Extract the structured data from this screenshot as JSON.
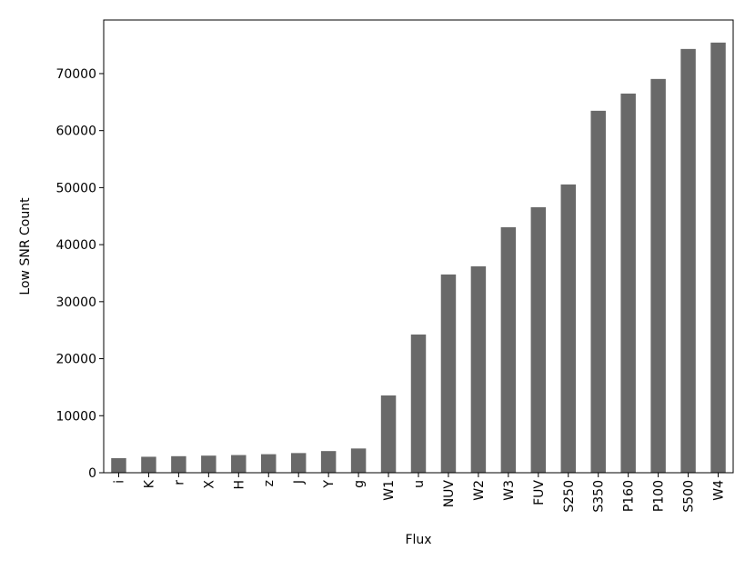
{
  "chart_data": {
    "type": "bar",
    "x_label": "Flux",
    "y_label": "Low SNR Count",
    "categories": [
      "i",
      "K",
      "r",
      "X",
      "H",
      "z",
      "J",
      "Y",
      "g",
      "W1",
      "u",
      "NUV",
      "W2",
      "W3",
      "FUV",
      "S250",
      "S350",
      "P160",
      "P100",
      "S500",
      "W4"
    ],
    "values": [
      2550,
      2800,
      2900,
      3000,
      3100,
      3250,
      3450,
      3800,
      4250,
      13550,
      24240,
      34770,
      36200,
      43060,
      46570,
      50560,
      63480,
      66500,
      69060,
      74320,
      75440
    ],
    "color": "#696969",
    "ylim": [
      0,
      79400
    ],
    "yticks": [
      0,
      10000,
      20000,
      30000,
      40000,
      50000,
      60000,
      70000
    ]
  }
}
